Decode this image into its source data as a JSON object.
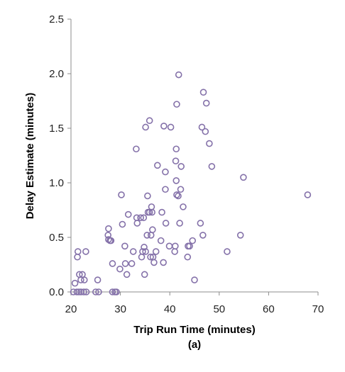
{
  "chart_data": {
    "type": "scatter",
    "title": "",
    "xlabel": "Trip Run Time (minutes)",
    "ylabel": "Delay Estimate (minutes)",
    "caption": "(a)",
    "xlim": [
      20,
      70
    ],
    "ylim": [
      0,
      2.5
    ],
    "xticks": [
      "20",
      "30",
      "40",
      "50",
      "60",
      "70"
    ],
    "yticks": [
      "0.0",
      "0.5",
      "1.0",
      "1.5",
      "2.0",
      "2.5"
    ],
    "grid": false,
    "marker_color": "#8471a9",
    "series": [
      {
        "points": [
          [
            20.5,
            0.0
          ],
          [
            21.2,
            0.0
          ],
          [
            21.6,
            0.0
          ],
          [
            22.0,
            0.0
          ],
          [
            22.6,
            0.0
          ],
          [
            23.1,
            0.0
          ],
          [
            25.0,
            0.0
          ],
          [
            25.6,
            0.0
          ],
          [
            28.4,
            0.0
          ],
          [
            28.9,
            0.0
          ],
          [
            29.2,
            0.0
          ],
          [
            20.8,
            0.08
          ],
          [
            22.0,
            0.11
          ],
          [
            22.7,
            0.11
          ],
          [
            25.4,
            0.11
          ],
          [
            21.7,
            0.16
          ],
          [
            22.3,
            0.16
          ],
          [
            21.3,
            0.32
          ],
          [
            21.4,
            0.37
          ],
          [
            23.0,
            0.37
          ],
          [
            28.4,
            0.26
          ],
          [
            29.9,
            0.21
          ],
          [
            31.0,
            0.26
          ],
          [
            31.3,
            0.16
          ],
          [
            32.3,
            0.26
          ],
          [
            34.9,
            0.16
          ],
          [
            27.6,
            0.58
          ],
          [
            27.5,
            0.52
          ],
          [
            27.6,
            0.48
          ],
          [
            27.9,
            0.47
          ],
          [
            28.1,
            0.47
          ],
          [
            30.2,
            0.89
          ],
          [
            30.4,
            0.62
          ],
          [
            30.9,
            0.42
          ],
          [
            31.6,
            0.71
          ],
          [
            32.6,
            0.37
          ],
          [
            33.3,
            0.68
          ],
          [
            33.4,
            0.63
          ],
          [
            34.1,
            0.68
          ],
          [
            34.3,
            0.32
          ],
          [
            34.5,
            0.37
          ],
          [
            34.7,
            0.68
          ],
          [
            34.8,
            0.41
          ],
          [
            35.1,
            0.37
          ],
          [
            35.4,
            0.52
          ],
          [
            35.5,
            0.88
          ],
          [
            35.6,
            0.73
          ],
          [
            35.9,
            0.73
          ],
          [
            36.1,
            0.32
          ],
          [
            36.2,
            0.52
          ],
          [
            36.3,
            0.78
          ],
          [
            36.4,
            0.73
          ],
          [
            36.5,
            0.57
          ],
          [
            36.6,
            0.32
          ],
          [
            36.8,
            0.27
          ],
          [
            37.2,
            0.37
          ],
          [
            38.2,
            0.47
          ],
          [
            38.4,
            0.73
          ],
          [
            38.7,
            0.27
          ],
          [
            39.1,
            0.94
          ],
          [
            39.2,
            0.63
          ],
          [
            39.9,
            0.42
          ],
          [
            41.0,
            0.37
          ],
          [
            41.1,
            0.42
          ],
          [
            41.3,
            1.02
          ],
          [
            41.4,
            0.89
          ],
          [
            41.7,
            0.88
          ],
          [
            42.0,
            0.63
          ],
          [
            42.2,
            0.94
          ],
          [
            42.7,
            0.78
          ],
          [
            43.6,
            0.32
          ],
          [
            43.7,
            0.42
          ],
          [
            44.0,
            0.42
          ],
          [
            44.6,
            0.47
          ],
          [
            45.0,
            0.11
          ],
          [
            46.2,
            0.63
          ],
          [
            46.7,
            0.52
          ],
          [
            51.6,
            0.37
          ],
          [
            54.3,
            0.52
          ],
          [
            33.2,
            1.31
          ],
          [
            35.1,
            1.51
          ],
          [
            35.9,
            1.57
          ],
          [
            37.5,
            1.16
          ],
          [
            38.8,
            1.52
          ],
          [
            39.1,
            1.1
          ],
          [
            40.2,
            1.51
          ],
          [
            41.2,
            1.2
          ],
          [
            41.3,
            1.31
          ],
          [
            41.4,
            1.72
          ],
          [
            41.8,
            1.99
          ],
          [
            42.3,
            1.15
          ],
          [
            46.5,
            1.51
          ],
          [
            46.8,
            1.83
          ],
          [
            47.2,
            1.47
          ],
          [
            47.4,
            1.73
          ],
          [
            48.0,
            1.36
          ],
          [
            48.5,
            1.15
          ],
          [
            54.9,
            1.05
          ],
          [
            67.9,
            0.89
          ]
        ]
      }
    ]
  }
}
